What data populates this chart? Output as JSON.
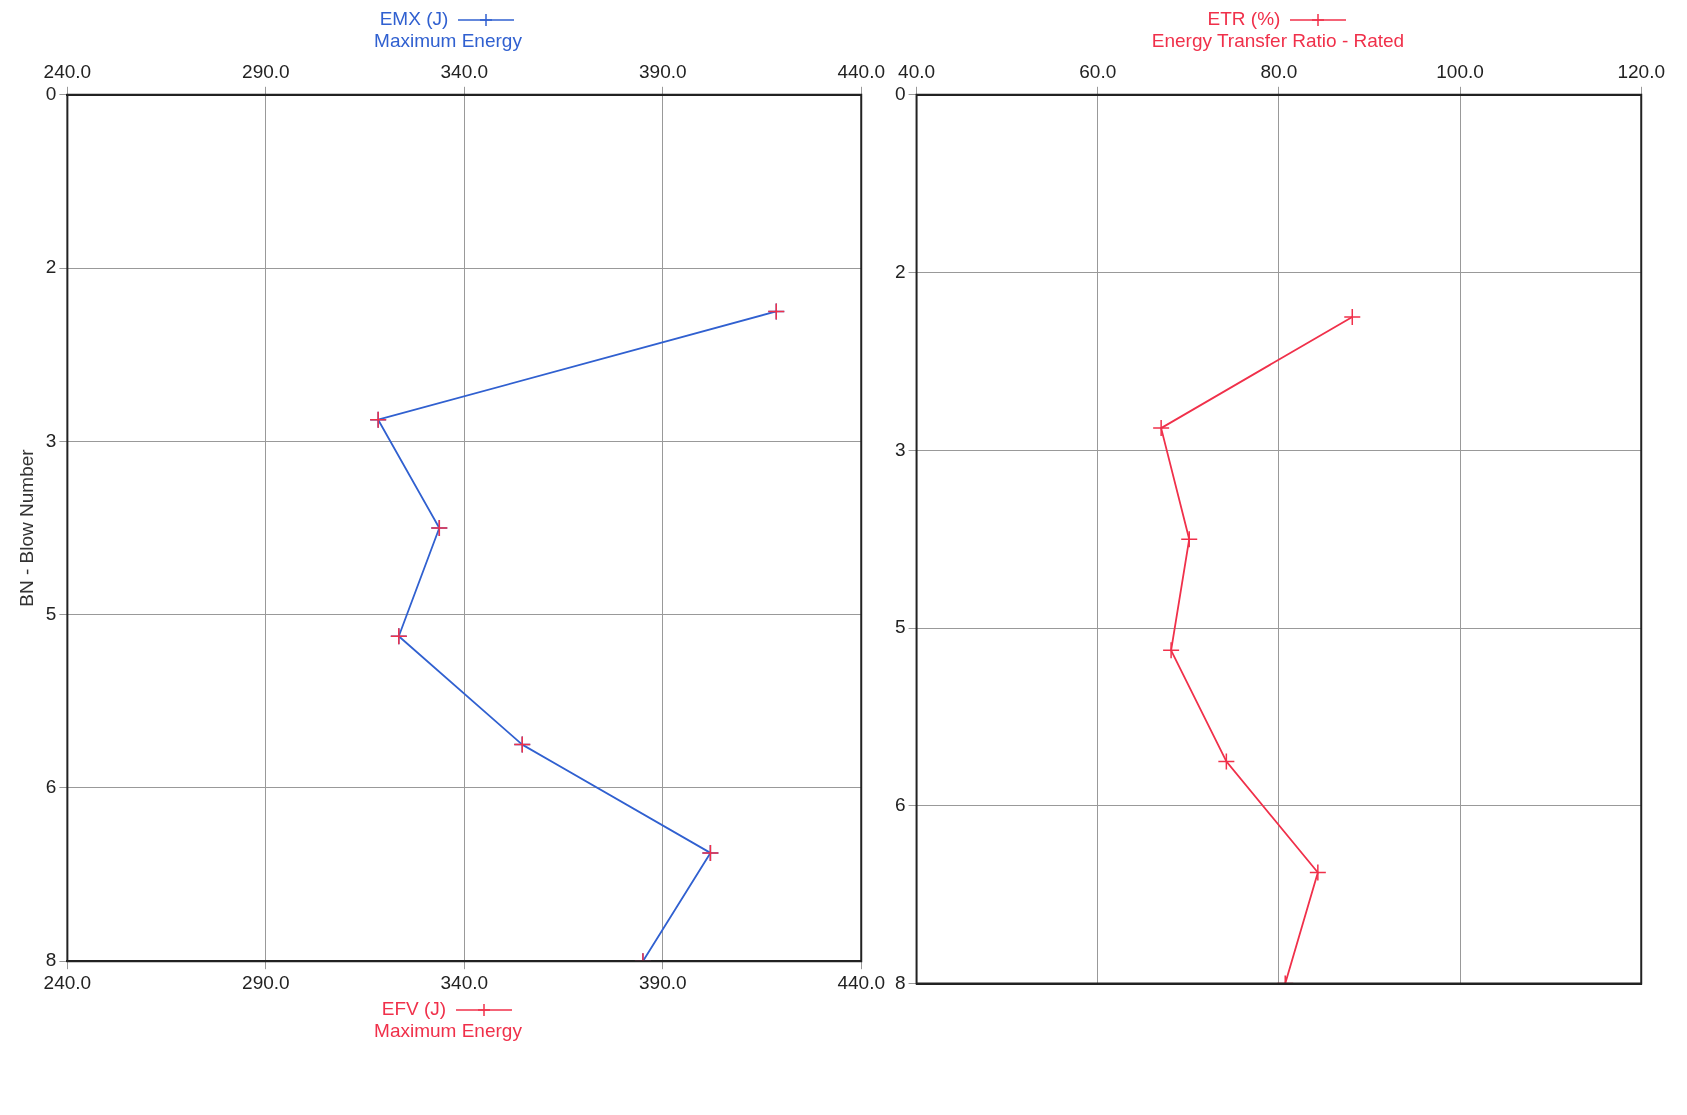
{
  "chart_data": [
    {
      "type": "line",
      "orientation": "horizontal",
      "x2label": "Maximum Energy",
      "xlabel": "Maximum Energy",
      "ylabel": "BN - Blow Number",
      "xlim": [
        240,
        440
      ],
      "x2lim": [
        240,
        440
      ],
      "xticks": [
        {
          "value": 240,
          "label": "240.0"
        },
        {
          "value": 290,
          "label": "290.0"
        },
        {
          "value": 340,
          "label": "340.0"
        },
        {
          "value": 390,
          "label": "390.0"
        },
        {
          "value": 440,
          "label": "440.0"
        }
      ],
      "x2ticks": [
        {
          "value": 240,
          "label": "240.0"
        },
        {
          "value": 290,
          "label": "290.0"
        },
        {
          "value": 340,
          "label": "340.0"
        },
        {
          "value": 390,
          "label": "390.0"
        },
        {
          "value": 440,
          "label": "440.0"
        }
      ],
      "ylim": [
        8,
        0
      ],
      "yticks": [
        {
          "value": 0,
          "label": "0"
        },
        {
          "value": 1.6,
          "label": "2"
        },
        {
          "value": 3.2,
          "label": "3"
        },
        {
          "value": 4.8,
          "label": "5"
        },
        {
          "value": 6.4,
          "label": "6"
        },
        {
          "value": 8,
          "label": "8"
        }
      ],
      "grid": true,
      "marker": "cross",
      "legend": "top",
      "series": [
        {
          "name": "EMX (J)",
          "color": "#3060d0",
          "axis": "x2",
          "x": [
            2,
            3,
            4,
            5,
            6,
            7,
            8
          ],
          "values": [
            418.6,
            318.3,
            333.7,
            323.5,
            354.6,
            402,
            385
          ]
        },
        {
          "name": "EFV (J)",
          "type": "scatter",
          "color": "#f0304a",
          "x": [
            2,
            3,
            4,
            5,
            6,
            7,
            8
          ],
          "values": [
            418.6,
            318.3,
            333.7,
            323.5,
            354.6,
            402,
            385
          ]
        }
      ]
    },
    {
      "type": "line",
      "orientation": "horizontal",
      "x2label": "Energy Transfer Ratio - Rated",
      "x2lim": [
        40,
        120
      ],
      "x2ticks": [
        {
          "value": 40,
          "label": "40.0"
        },
        {
          "value": 60,
          "label": "60.0"
        },
        {
          "value": 80,
          "label": "80.0"
        },
        {
          "value": 100,
          "label": "100.0"
        },
        {
          "value": 120,
          "label": "120.0"
        }
      ],
      "ylim": [
        8,
        0
      ],
      "yticks": [
        {
          "value": 0,
          "label": "0"
        },
        {
          "value": 1.6,
          "label": "2"
        },
        {
          "value": 3.2,
          "label": "3"
        },
        {
          "value": 4.8,
          "label": "5"
        },
        {
          "value": 6.4,
          "label": "6"
        },
        {
          "value": 8,
          "label": "8"
        }
      ],
      "grid": true,
      "marker": "cross",
      "legend": "top",
      "series": [
        {
          "name": "ETR (%)",
          "color": "#f0304a",
          "axis": "x2",
          "x": [
            2,
            3,
            4,
            5,
            6,
            7,
            8
          ],
          "values": [
            88.1,
            67,
            70.1,
            68.1,
            74.2,
            84.3,
            80.7
          ]
        }
      ]
    }
  ]
}
